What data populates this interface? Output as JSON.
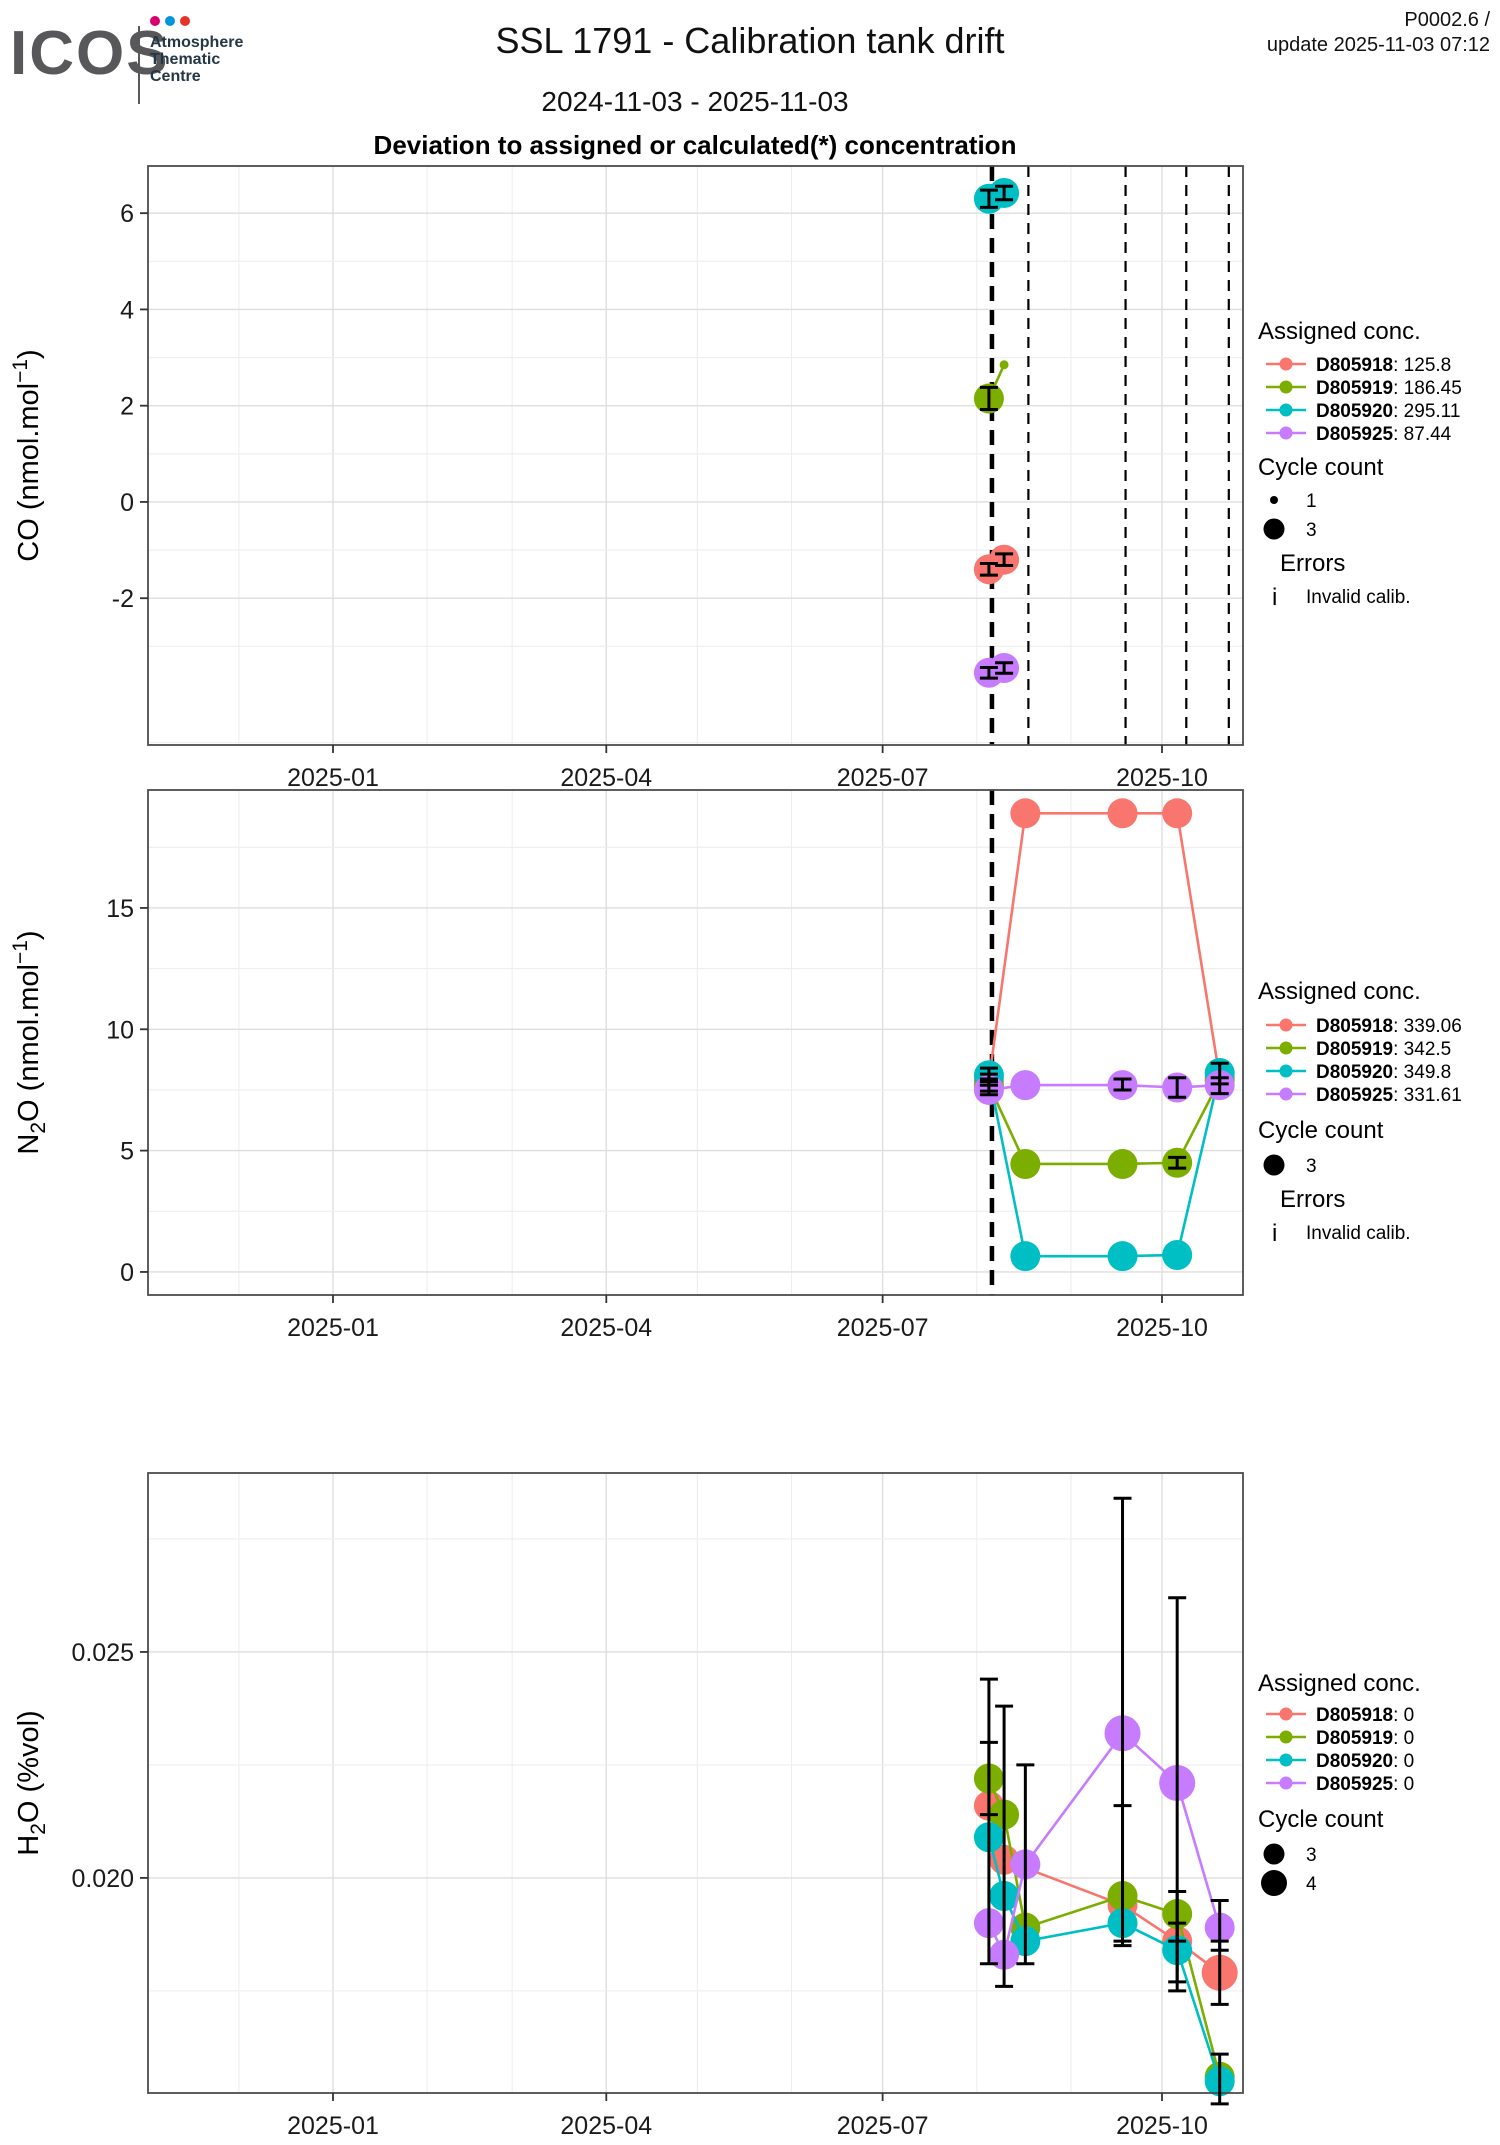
{
  "header": {
    "logo_text": "ICOS",
    "logo_unit": [
      "Atmosphere",
      "Thematic",
      "Centre"
    ],
    "logo_dot_colors": [
      "#d6006f",
      "#0095db",
      "#e63329"
    ],
    "title": "SSL 1791 - Calibration tank drift",
    "subtitle": "2024-11-03 - 2025-11-03",
    "version": "P0002.6 /",
    "update_line": "update  2025-11-03 07:12"
  },
  "heading": "Deviation to assigned or calculated(*) concentration",
  "chart_data": [
    {
      "type": "line",
      "id": "co-drift",
      "ylabel": "CO (nmol.mol-1)",
      "ylabel_parts": [
        [
          "t",
          "CO (nmol.mol"
        ],
        [
          "sup",
          "−1"
        ],
        [
          "t",
          ")"
        ]
      ],
      "x_ticks": [
        {
          "date": "2025-01-01",
          "label": "2025-01"
        },
        {
          "date": "2025-04-01",
          "label": "2025-04"
        },
        {
          "date": "2025-07-01",
          "label": "2025-07"
        },
        {
          "date": "2025-10-01",
          "label": "2025-10"
        }
      ],
      "x_minor": [
        "2024-12-01",
        "2025-02-01",
        "2025-03-01",
        "2025-05-01",
        "2025-06-01",
        "2025-08-01",
        "2025-09-01"
      ],
      "x_domain": [
        "2024-11-01",
        "2025-10-27"
      ],
      "y_ticks": [
        6,
        4,
        2,
        0,
        -2
      ],
      "y_minor": [
        5,
        3,
        1,
        -1,
        -3,
        -5
      ],
      "y_domain": [
        -5.05,
        6.98
      ],
      "grid": true,
      "vlines": [
        {
          "date": "2025-08-06",
          "style": "thick"
        },
        {
          "date": "2025-08-18",
          "style": "thin"
        },
        {
          "date": "2025-09-19",
          "style": "thin"
        },
        {
          "date": "2025-10-09",
          "style": "thin"
        },
        {
          "date": "2025-10-23",
          "style": "thin"
        }
      ],
      "series": [
        {
          "id": "D805918",
          "assigned": "125.8",
          "color": "#F8766D",
          "points": [
            {
              "x": "2025-08-05",
              "y": -1.4,
              "cc": 3,
              "e": [
                -1.52,
                -1.28
              ]
            },
            {
              "x": "2025-08-10",
              "y": -1.2,
              "cc": 3,
              "e": [
                -1.32,
                -1.08
              ]
            }
          ]
        },
        {
          "id": "D805919",
          "assigned": "186.45",
          "color": "#7CAE00",
          "points": [
            {
              "x": "2025-08-05",
              "y": 2.15,
              "cc": 3,
              "e": [
                1.92,
                2.38
              ]
            },
            {
              "x": "2025-08-10",
              "y": 2.85,
              "cc": 1
            }
          ]
        },
        {
          "id": "D805920",
          "assigned": "295.11",
          "color": "#00BFC4",
          "points": [
            {
              "x": "2025-08-05",
              "y": 6.3,
              "cc": 3,
              "e": [
                6.12,
                6.48
              ]
            },
            {
              "x": "2025-08-10",
              "y": 6.42,
              "cc": 3,
              "e": [
                6.28,
                6.56
              ]
            }
          ]
        },
        {
          "id": "D805925",
          "assigned": "87.44",
          "color": "#C77CFF",
          "points": [
            {
              "x": "2025-08-05",
              "y": -3.55,
              "cc": 3,
              "e": [
                -3.66,
                -3.44
              ]
            },
            {
              "x": "2025-08-10",
              "y": -3.45,
              "cc": 3,
              "e": [
                -3.56,
                -3.34
              ]
            }
          ]
        }
      ],
      "legend": {
        "assigned_title": "Assigned conc.",
        "cycle_title": "Cycle count",
        "cycles": [
          {
            "label": "1",
            "cc": 1
          },
          {
            "label": "3",
            "cc": 3
          }
        ],
        "errors_title": "Errors",
        "errors": [
          {
            "glyph": "i",
            "label": "Invalid calib."
          }
        ],
        "position": "right"
      }
    },
    {
      "type": "line",
      "id": "n2o-drift",
      "ylabel": "N2O (nmol.mol-1)",
      "ylabel_parts": [
        [
          "t",
          "N"
        ],
        [
          "sub",
          "2"
        ],
        [
          "t",
          "O (nmol.mol"
        ],
        [
          "sup",
          "−1"
        ],
        [
          "t",
          ")"
        ]
      ],
      "x_ticks": [
        {
          "date": "2025-01-01",
          "label": "2025-01"
        },
        {
          "date": "2025-04-01",
          "label": "2025-04"
        },
        {
          "date": "2025-07-01",
          "label": "2025-07"
        },
        {
          "date": "2025-10-01",
          "label": "2025-10"
        }
      ],
      "x_minor": [
        "2024-12-01",
        "2025-02-01",
        "2025-03-01",
        "2025-05-01",
        "2025-06-01",
        "2025-08-01",
        "2025-09-01"
      ],
      "x_domain": [
        "2024-11-01",
        "2025-10-27"
      ],
      "y_ticks": [
        15,
        10,
        5,
        0
      ],
      "y_minor": [
        17.5,
        12.5,
        7.5,
        2.5
      ],
      "y_domain": [
        -0.95,
        19.86
      ],
      "grid": true,
      "vlines": [
        {
          "date": "2025-08-06",
          "style": "thick"
        }
      ],
      "series": [
        {
          "id": "D805918",
          "assigned": "339.06",
          "color": "#F8766D",
          "points": [
            {
              "x": "2025-08-05",
              "y": 7.9,
              "cc": 3,
              "e": [
                7.7,
                8.15
              ]
            },
            {
              "x": "2025-08-17",
              "y": 18.9,
              "cc": 3
            },
            {
              "x": "2025-09-18",
              "y": 18.9,
              "cc": 3
            },
            {
              "x": "2025-10-06",
              "y": 18.9,
              "cc": 3
            },
            {
              "x": "2025-10-20",
              "y": 8.0,
              "cc": 3
            }
          ]
        },
        {
          "id": "D805919",
          "assigned": "342.5",
          "color": "#7CAE00",
          "points": [
            {
              "x": "2025-08-05",
              "y": 7.7,
              "cc": 3,
              "e": [
                7.45,
                7.95
              ]
            },
            {
              "x": "2025-08-17",
              "y": 4.45,
              "cc": 3
            },
            {
              "x": "2025-09-18",
              "y": 4.45,
              "cc": 3
            },
            {
              "x": "2025-10-06",
              "y": 4.5,
              "cc": 3,
              "e": [
                4.28,
                4.72
              ]
            },
            {
              "x": "2025-10-20",
              "y": 7.9,
              "cc": 3
            }
          ]
        },
        {
          "id": "D805920",
          "assigned": "349.8",
          "color": "#00BFC4",
          "points": [
            {
              "x": "2025-08-05",
              "y": 8.1,
              "cc": 3,
              "e": [
                7.85,
                8.4
              ]
            },
            {
              "x": "2025-08-17",
              "y": 0.65,
              "cc": 3
            },
            {
              "x": "2025-09-18",
              "y": 0.65,
              "cc": 3
            },
            {
              "x": "2025-10-06",
              "y": 0.7,
              "cc": 3
            },
            {
              "x": "2025-10-20",
              "y": 8.2,
              "cc": 3,
              "e": [
                7.75,
                8.6
              ]
            }
          ]
        },
        {
          "id": "D805925",
          "assigned": "331.61",
          "color": "#C77CFF",
          "points": [
            {
              "x": "2025-08-05",
              "y": 7.5,
              "cc": 3,
              "e": [
                7.3,
                7.7
              ]
            },
            {
              "x": "2025-08-17",
              "y": 7.7,
              "cc": 3
            },
            {
              "x": "2025-09-18",
              "y": 7.7,
              "cc": 3,
              "e": [
                7.5,
                7.95
              ]
            },
            {
              "x": "2025-10-06",
              "y": 7.6,
              "cc": 3,
              "e": [
                7.2,
                8.0
              ]
            },
            {
              "x": "2025-10-20",
              "y": 7.7,
              "cc": 3,
              "e": [
                7.35,
                8.0
              ]
            }
          ]
        }
      ],
      "legend": {
        "assigned_title": "Assigned conc.",
        "cycle_title": "Cycle count",
        "cycles": [
          {
            "label": "3",
            "cc": 3
          }
        ],
        "errors_title": "Errors",
        "errors": [
          {
            "glyph": "i",
            "label": "Invalid calib."
          }
        ],
        "position": "right"
      }
    },
    {
      "type": "line",
      "id": "h2o-drift",
      "ylabel": "H2O (%vol)",
      "ylabel_parts": [
        [
          "t",
          "H"
        ],
        [
          "sub",
          "2"
        ],
        [
          "t",
          "O (%vol)"
        ]
      ],
      "x_ticks": [
        {
          "date": "2025-01-01",
          "label": "2025-01"
        },
        {
          "date": "2025-04-01",
          "label": "2025-04"
        },
        {
          "date": "2025-07-01",
          "label": "2025-07"
        },
        {
          "date": "2025-10-01",
          "label": "2025-10"
        }
      ],
      "x_minor": [
        "2024-12-01",
        "2025-02-01",
        "2025-03-01",
        "2025-05-01",
        "2025-06-01",
        "2025-08-01",
        "2025-09-01"
      ],
      "x_domain": [
        "2024-11-01",
        "2025-10-27"
      ],
      "y_ticks": [
        0.025,
        0.02
      ],
      "y_tick_labels": [
        "0.025",
        "0.020"
      ],
      "y_minor": [
        0.0275,
        0.0225,
        0.0175
      ],
      "y_domain": [
        0.01524,
        0.02896
      ],
      "grid": true,
      "vlines": [],
      "series": [
        {
          "id": "D805918",
          "assigned": "0",
          "color": "#F8766D",
          "points": [
            {
              "x": "2025-08-05",
              "y": 0.0216,
              "cc": 3
            },
            {
              "x": "2025-08-10",
              "y": 0.0204,
              "cc": 3
            },
            {
              "x": "2025-09-18",
              "y": 0.0194,
              "cc": 3
            },
            {
              "x": "2025-10-06",
              "y": 0.0186,
              "cc": 3
            },
            {
              "x": "2025-10-20",
              "y": 0.0179,
              "cc": 4,
              "e": [
                0.0172,
                0.0186
              ]
            }
          ]
        },
        {
          "id": "D805919",
          "assigned": "0",
          "color": "#7CAE00",
          "points": [
            {
              "x": "2025-08-05",
              "y": 0.0222,
              "cc": 3,
              "e": [
                0.0214,
                0.023
              ]
            },
            {
              "x": "2025-08-10",
              "y": 0.0214,
              "cc": 3
            },
            {
              "x": "2025-08-17",
              "y": 0.0189,
              "cc": 3
            },
            {
              "x": "2025-09-18",
              "y": 0.0196,
              "cc": 3,
              "e": [
                0.0186,
                0.0216
              ]
            },
            {
              "x": "2025-10-06",
              "y": 0.0192,
              "cc": 3,
              "e": [
                0.0186,
                0.0197
              ]
            },
            {
              "x": "2025-10-20",
              "y": 0.0156,
              "cc": 3
            }
          ]
        },
        {
          "id": "D805920",
          "assigned": "0",
          "color": "#00BFC4",
          "points": [
            {
              "x": "2025-08-05",
              "y": 0.0209,
              "cc": 3,
              "e": [
                0.0181,
                0.0244
              ]
            },
            {
              "x": "2025-08-10",
              "y": 0.0196,
              "cc": 3,
              "e": [
                0.0176,
                0.0238
              ]
            },
            {
              "x": "2025-08-17",
              "y": 0.0186,
              "cc": 3,
              "e": [
                0.0181,
                0.0225
              ]
            },
            {
              "x": "2025-09-18",
              "y": 0.019,
              "cc": 3
            },
            {
              "x": "2025-10-06",
              "y": 0.0184,
              "cc": 3,
              "e": [
                0.0177,
                0.019
              ]
            },
            {
              "x": "2025-10-20",
              "y": 0.0155,
              "cc": 3,
              "e": [
                0.015,
                0.0161
              ]
            }
          ]
        },
        {
          "id": "D805925",
          "assigned": "0",
          "color": "#C77CFF",
          "points": [
            {
              "x": "2025-08-05",
              "y": 0.019,
              "cc": 3
            },
            {
              "x": "2025-08-10",
              "y": 0.0183,
              "cc": 3
            },
            {
              "x": "2025-08-17",
              "y": 0.0203,
              "cc": 3
            },
            {
              "x": "2025-09-18",
              "y": 0.0232,
              "cc": 4,
              "e": [
                0.0185,
                0.0284
              ]
            },
            {
              "x": "2025-10-06",
              "y": 0.0221,
              "cc": 4,
              "e": [
                0.0175,
                0.0262
              ]
            },
            {
              "x": "2025-10-20",
              "y": 0.0189,
              "cc": 3,
              "e": [
                0.0184,
                0.0195
              ]
            }
          ]
        }
      ],
      "legend": {
        "assigned_title": "Assigned conc.",
        "cycle_title": "Cycle count",
        "cycles": [
          {
            "label": "3",
            "cc": 3
          },
          {
            "label": "4",
            "cc": 4
          }
        ],
        "position": "right"
      }
    }
  ]
}
